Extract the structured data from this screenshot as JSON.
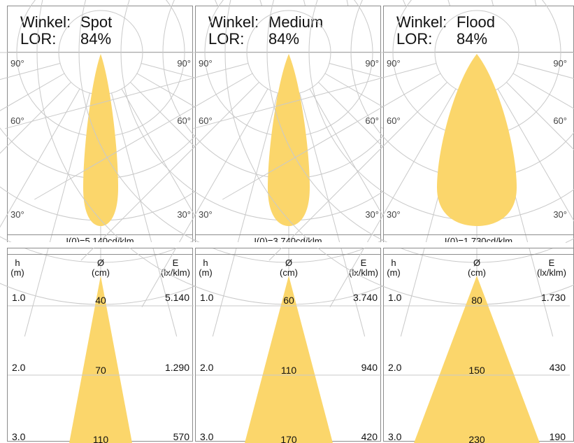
{
  "header_labels": {
    "angle": "Winkel:",
    "lor": "LOR:"
  },
  "polar_angle_labels": [
    "90°",
    "60°",
    "30°"
  ],
  "table_headers": {
    "h": [
      "h",
      "(m)"
    ],
    "d": [
      "Ø",
      "(cm)"
    ],
    "e": [
      "E",
      "(lx/klm)"
    ]
  },
  "panels": [
    {
      "beam": "Spot",
      "lor": "84%",
      "intensity_caption": "I(0)=5.140cd/klm",
      "rows": [
        {
          "h": "1.0",
          "d": "40",
          "e": "5.140"
        },
        {
          "h": "2.0",
          "d": "70",
          "e": "1.290"
        },
        {
          "h": "3.0",
          "d": "110",
          "e": "570"
        }
      ]
    },
    {
      "beam": "Medium",
      "lor": "84%",
      "intensity_caption": "I(0)=3.740cd/klm",
      "rows": [
        {
          "h": "1.0",
          "d": "60",
          "e": "3.740"
        },
        {
          "h": "2.0",
          "d": "110",
          "e": "940"
        },
        {
          "h": "3.0",
          "d": "170",
          "e": "420"
        }
      ]
    },
    {
      "beam": "Flood",
      "lor": "84%",
      "intensity_caption": "I(0)=1.730cd/klm",
      "rows": [
        {
          "h": "1.0",
          "d": "80",
          "e": "1.730"
        },
        {
          "h": "2.0",
          "d": "150",
          "e": "430"
        },
        {
          "h": "3.0",
          "d": "230",
          "e": "190"
        }
      ]
    }
  ],
  "colors": {
    "beam_fill": "#fbd66b",
    "grid": "#c9c9c9",
    "border": "#8c8c8c"
  },
  "chart_data": [
    {
      "type": "polar",
      "title": "Spot",
      "lor_percent": 84,
      "i0_cd_per_klm": 5140,
      "table": {
        "columns": [
          "h (m)",
          "Ø (cm)",
          "E (lx/klm)"
        ],
        "h": [
          1.0,
          2.0,
          3.0
        ],
        "diameter_cm": [
          40,
          70,
          110
        ],
        "E_lx_per_klm": [
          5140,
          1290,
          570
        ]
      }
    },
    {
      "type": "polar",
      "title": "Medium",
      "lor_percent": 84,
      "i0_cd_per_klm": 3740,
      "table": {
        "columns": [
          "h (m)",
          "Ø (cm)",
          "E (lx/klm)"
        ],
        "h": [
          1.0,
          2.0,
          3.0
        ],
        "diameter_cm": [
          60,
          110,
          170
        ],
        "E_lx_per_klm": [
          3740,
          940,
          420
        ]
      }
    },
    {
      "type": "polar",
      "title": "Flood",
      "lor_percent": 84,
      "i0_cd_per_klm": 1730,
      "table": {
        "columns": [
          "h (m)",
          "Ø (cm)",
          "E (lx/klm)"
        ],
        "h": [
          1.0,
          2.0,
          3.0
        ],
        "diameter_cm": [
          80,
          150,
          230
        ],
        "E_lx_per_klm": [
          1730,
          430,
          190
        ]
      }
    }
  ]
}
